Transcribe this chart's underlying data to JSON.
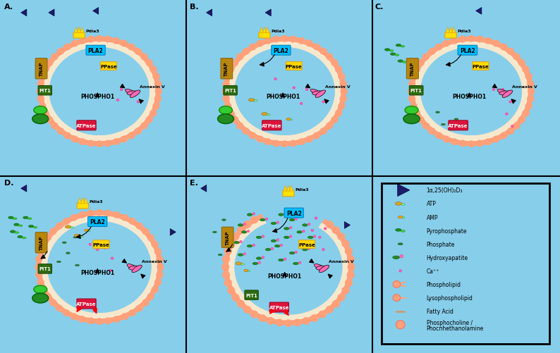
{
  "bg_color": "#87CEEB",
  "membrane_outer_color": "#FFA07A",
  "membrane_tail_color": "#FFFFFF",
  "membrane_inner_lumen": "#87CEEB",
  "pla2_color": "#00BFFF",
  "tnap_color": "#B8860B",
  "ppase_color": "#FFD700",
  "pit1_box_color": "#3A7A1A",
  "phospho1_color": "#87CEEB",
  "atpase_color": "#DC143C",
  "annexin_color": "#FF69B4",
  "pdia3_color": "#FFD700",
  "vitamin_d_color": "#1C1C6E",
  "atp_color": "#DAA520",
  "amp_color": "#FFA500",
  "pyrophosphate_color": "#228B22",
  "phosphate_color": "#2E7D32",
  "hydroxyapatite_green": "#228B22",
  "hydroxyapatite_pink": "#FF69B4",
  "calcium_color": "#FF69B4",
  "phospholipid_color": "#FFA07A",
  "fatty_acid_color": "#CC8866",
  "green_ell1_color": "#32CD32",
  "green_ell2_color": "#228B22",
  "panel_labels": [
    "A.",
    "B.",
    "C.",
    "D.",
    "E."
  ],
  "legend_items_text": [
    "1α,25(OH)₂D₃",
    "ATP",
    "AMP",
    "Pyrophosphate",
    "Phosphate",
    "Hydroxyapatite",
    "Ca⁺⁺",
    "Phospholipid",
    "Lysophospholipid",
    "Fatty Acid",
    "Phosphocholine /\nPhoспhethanolamine"
  ]
}
